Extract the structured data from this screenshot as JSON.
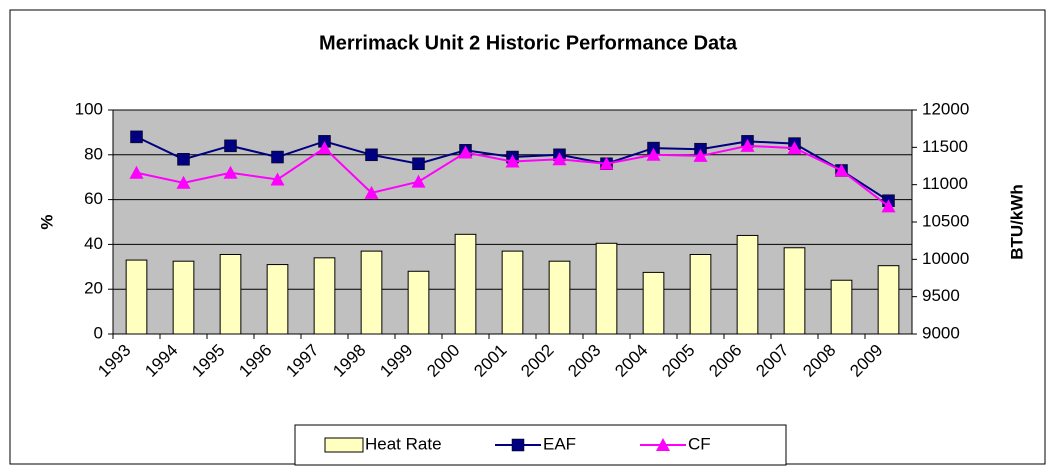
{
  "chart_data": {
    "type": "combo",
    "title": "Merrimack Unit 2 Historic Performance Data",
    "y_label": "%",
    "y2_label": "BTU/kWh",
    "categories": [
      "1993",
      "1994",
      "1995",
      "1996",
      "1997",
      "1998",
      "1999",
      "2000",
      "2001",
      "2002",
      "2003",
      "2004",
      "2005",
      "2006",
      "2007",
      "2008",
      "2009"
    ],
    "series": [
      {
        "name": "Heat Rate",
        "type": "bar",
        "axis": "y2",
        "color": "#ffffc0",
        "values": [
          9990,
          9975,
          10065,
          9930,
          10020,
          10110,
          9840,
          10335,
          10110,
          9975,
          10215,
          9825,
          10065,
          10320,
          10155,
          9720,
          9915
        ]
      },
      {
        "name": "EAF",
        "type": "line",
        "color": "#000080",
        "marker": "square",
        "values": [
          88,
          78,
          84,
          79,
          86,
          80,
          76,
          82,
          79,
          80,
          76,
          83,
          82.5,
          86,
          85,
          73,
          59.5
        ]
      },
      {
        "name": "CF",
        "type": "line",
        "color": "#ff00ff",
        "marker": "triangle",
        "values": [
          72,
          67.5,
          72,
          69,
          83,
          63,
          68,
          81,
          77,
          78,
          76,
          80,
          79.5,
          84,
          83,
          73,
          57
        ]
      }
    ],
    "ylim": [
      0,
      100
    ],
    "yticks": [
      0,
      20,
      40,
      60,
      80,
      100
    ],
    "y2lim": [
      9000,
      12000
    ],
    "y2ticks": [
      9000,
      9500,
      10000,
      10500,
      11000,
      11500,
      12000
    ],
    "grid": true,
    "legend": "bottom"
  }
}
